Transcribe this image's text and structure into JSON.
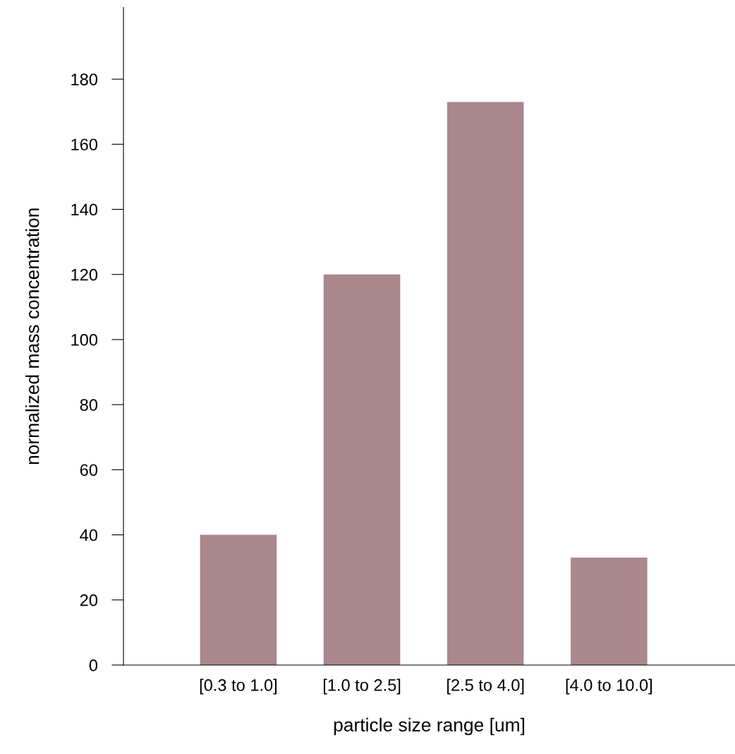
{
  "chart_data": {
    "type": "bar",
    "xlabel": "particle size range [um]",
    "ylabel": "normalized mass concentration",
    "categories": [
      "[0.3 to 1.0]",
      "[1.0 to 2.5]",
      "[2.5 to 4.0]",
      "[4.0 to 10.0]"
    ],
    "values": [
      40,
      120,
      173,
      33
    ],
    "color": "#a9878d",
    "ylim": [
      0,
      202
    ],
    "yticks": [
      0,
      20,
      40,
      60,
      80,
      100,
      120,
      140,
      160,
      180
    ],
    "grid": false
  }
}
